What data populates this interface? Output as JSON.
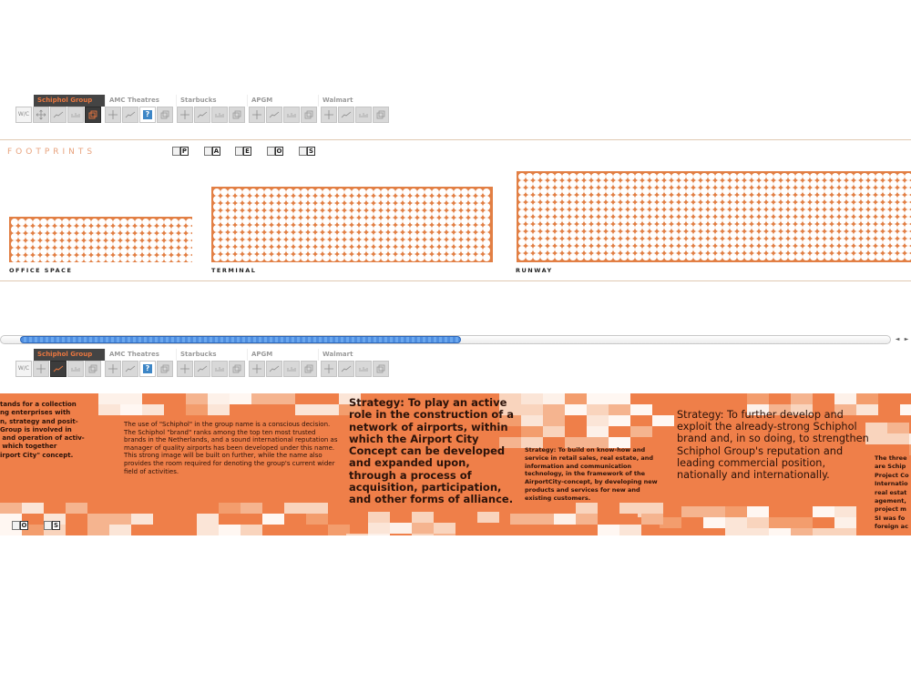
{
  "toolbar_top": {
    "groups": [
      "Schiphol Group",
      "AMC Theatres",
      "Starbucks",
      "APGM",
      "Walmart"
    ],
    "active_group": "Schiphol Group",
    "wc_label": "W/C",
    "active_icon": "layers-icon"
  },
  "footprints": {
    "title": "FOOTPRINTS",
    "doc_buttons": [
      "P",
      "A",
      "E",
      "O",
      "S"
    ],
    "sections": [
      {
        "label": "OFFICE SPACE",
        "cols": 25,
        "rows": 6
      },
      {
        "label": "TERMINAL",
        "cols": 38,
        "rows": 10
      },
      {
        "label": "RUNWAY",
        "cols": 55,
        "rows": 12
      }
    ]
  },
  "toolbar_bottom": {
    "groups": [
      "Schiphol Group",
      "AMC Theatres",
      "Starbucks",
      "APGM",
      "Walmart"
    ],
    "active_group": "Schiphol Group",
    "wc_label": "W/C",
    "active_icon": "line-chart-icon"
  },
  "scrollbar": {
    "left_arrow": "◄",
    "right_arrow": "►"
  },
  "strip": {
    "text1": "tands for a collection\nng enterprises with\nn, strategy and posit-\nGroup is involved in\n and operation of activ-\n which together\nirport City\" concept.",
    "text2": "The use of \"Schiphol\" in the group name is a conscious decision. The Schiphol \"brand\" ranks among the top ten most trusted brands in the Netherlands, and a sound international reputation as manager of quality airports has been developed under this name. This strong image will be built on further, while the name also provides the room required for denoting the group's current wider field of activities.",
    "text3": "Strategy: To play an active role in the construction of a network of airports, within which the Airport City Concept can be developed and expanded upon, through a process of acquisition, participation, and other forms of alliance.",
    "text4": "Strategy: To build on know-how and service in retail sales, real estate, and information and communication technology, in the framework of the AirportCity-concept, by developing new products and services for new and existing customers.",
    "text5": "Strategy: To further develop and exploit the already-strong Schiphol brand and, in so doing, to strengthen Schiphol Group's reputation and leading commercial position, nationally and internationally.",
    "text6": "The three\nare Schip\nProject Co\nInternatio\nreal estat\nagement,\nproject m\nSI was fo\nforeign ac",
    "doc_buttons": [
      "O",
      "S"
    ]
  },
  "colors": {
    "accent": "#e27f44",
    "strip_bg": "#ef7f49",
    "active_tab_bg": "#444444",
    "active_tab_text": "#e8763f",
    "scroll_thumb": "#4f8ee0"
  }
}
